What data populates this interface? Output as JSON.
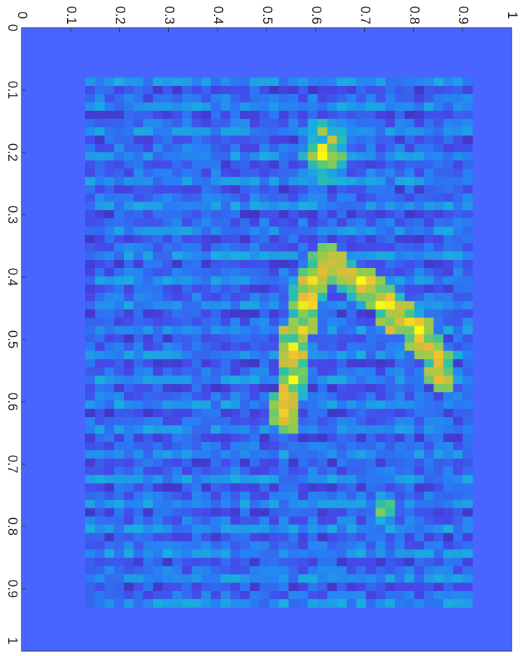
{
  "chart_data": {
    "type": "heatmap",
    "title": "",
    "xlabel": "",
    "ylabel": "",
    "orientation": "rotated 90° clockwise",
    "x_axis_position": "top",
    "y_axis_position": "left",
    "xlim": [
      0,
      1
    ],
    "ylim": [
      0,
      1
    ],
    "x_ticks": [
      0,
      0.1,
      0.2,
      0.3,
      0.4,
      0.5,
      0.6,
      0.7,
      0.8,
      0.9,
      1
    ],
    "x_tick_labels": [
      "0",
      "0.1",
      "0.2",
      "0.3",
      "0.4",
      "0.5",
      "0.6",
      "0.7",
      "0.8",
      "0.9",
      "1"
    ],
    "y_ticks": [
      0,
      0.1,
      0.2,
      0.3,
      0.4,
      0.5,
      0.6,
      0.7,
      0.8,
      0.9,
      1
    ],
    "y_tick_labels": [
      "0",
      "0.1",
      "0.2",
      "0.3",
      "0.4",
      "0.5",
      "0.6",
      "0.7",
      "0.8",
      "0.9",
      "1"
    ],
    "grid": false,
    "colormap": "parula",
    "colors": {
      "background": "#4865ff",
      "low": "#3d3fd9",
      "mid": "#21b3d8",
      "high": "#fde725"
    },
    "data_extent": {
      "x": [
        0.13,
        0.92
      ],
      "y": [
        0.08,
        0.93
      ]
    },
    "hotspots": [
      {
        "name": "arc",
        "points": [
          [
            0.54,
            0.62
          ],
          [
            0.56,
            0.5
          ],
          [
            0.58,
            0.43
          ],
          [
            0.6,
            0.4
          ],
          [
            0.62,
            0.38
          ],
          [
            0.64,
            0.38
          ],
          [
            0.66,
            0.4
          ],
          [
            0.68,
            0.41
          ],
          [
            0.7,
            0.41
          ],
          [
            0.72,
            0.42
          ],
          [
            0.74,
            0.44
          ],
          [
            0.76,
            0.46
          ],
          [
            0.78,
            0.46
          ],
          [
            0.8,
            0.48
          ],
          [
            0.84,
            0.52
          ],
          [
            0.86,
            0.56
          ]
        ]
      },
      {
        "name": "cluster-upper",
        "center": [
          0.62,
          0.2
        ],
        "spread": 0.06,
        "peak": 0.85
      },
      {
        "name": "cluster-lower",
        "center": [
          0.74,
          0.77
        ],
        "spread": 0.03,
        "peak": 0.65
      }
    ]
  }
}
